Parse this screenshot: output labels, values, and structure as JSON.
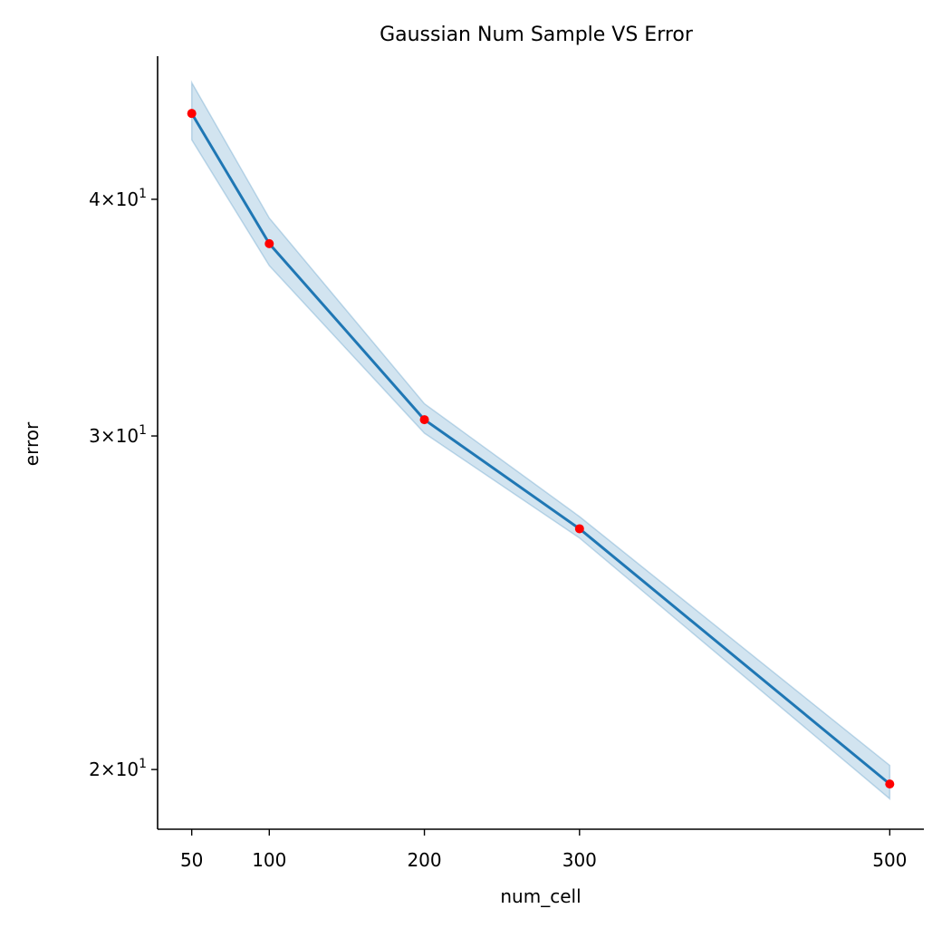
{
  "chart_data": {
    "type": "line",
    "title": "Gaussian Num Sample VS Error",
    "xlabel": "num_cell",
    "ylabel": "error",
    "x_ticks": [
      {
        "value": 50,
        "label": "50"
      },
      {
        "value": 100,
        "label": "100"
      },
      {
        "value": 200,
        "label": "200"
      },
      {
        "value": 300,
        "label": "300"
      },
      {
        "value": 500,
        "label": "500"
      }
    ],
    "y_scale": "log",
    "y_ticks": [
      {
        "value": 20,
        "mantissa": "2",
        "base": "10",
        "exp": "1"
      },
      {
        "value": 30,
        "mantissa": "3",
        "base": "10",
        "exp": "1"
      },
      {
        "value": 40,
        "mantissa": "4",
        "base": "10",
        "exp": "1"
      }
    ],
    "xlim": [
      28,
      522
    ],
    "ylim": [
      18.6,
      47.6
    ],
    "grid": false,
    "series": [
      {
        "x": [
          50,
          100,
          200,
          300,
          500
        ],
        "y": [
          44.4,
          37.9,
          30.6,
          26.8,
          19.65
        ],
        "ci_lower": [
          43.0,
          36.9,
          30.1,
          26.5,
          19.3
        ],
        "ci_upper": [
          46.1,
          39.1,
          31.2,
          27.2,
          20.1
        ],
        "line_color": "#1f77b4",
        "band_color": "#1f77b4",
        "marker_color": "#ff0000"
      }
    ]
  }
}
